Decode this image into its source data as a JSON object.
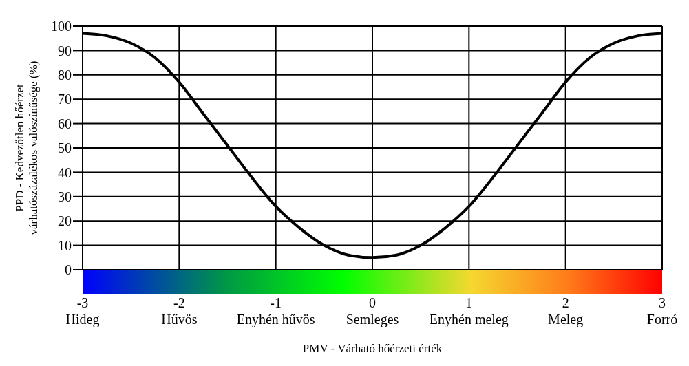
{
  "chart_data": {
    "type": "line",
    "xlabel": "PMV - Várható hőérzeti érték",
    "ylabel": "PPD - Kedvezőtlen hőérzet várhatószázalékos valószínűsége (%)",
    "x": [
      -3,
      -2.75,
      -2.5,
      -2.25,
      -2,
      -1.75,
      -1.5,
      -1.25,
      -1,
      -0.75,
      -0.5,
      -0.25,
      0,
      0.25,
      0.5,
      0.75,
      1,
      1.25,
      1.5,
      1.75,
      2,
      2.25,
      2.5,
      2.75,
      3
    ],
    "series": [
      {
        "color": "#000000",
        "values": [
          97,
          96,
          93,
          87,
          77,
          64,
          51,
          38,
          26,
          17,
          10,
          6,
          5,
          6,
          10,
          17,
          26,
          38,
          51,
          64,
          77,
          87,
          93,
          96,
          97
        ]
      }
    ],
    "xlim": [
      -3,
      3
    ],
    "ylim": [
      0,
      100
    ],
    "xticks": [
      {
        "value": -3,
        "label": "-3\nHideg"
      },
      {
        "value": -2,
        "label": "-2\nHűvös"
      },
      {
        "value": -1,
        "label": "-1\nEnyhén hűvös"
      },
      {
        "value": 0,
        "label": "0\nSemleges"
      },
      {
        "value": 1,
        "label": "1\nEnyhén meleg"
      },
      {
        "value": 2,
        "label": "2\nMeleg"
      },
      {
        "value": 3,
        "label": "3\nForró"
      }
    ],
    "yticks": [
      0,
      10,
      20,
      30,
      40,
      50,
      60,
      70,
      80,
      90,
      100
    ],
    "grid": true,
    "marker": "none",
    "line_style": "solid"
  }
}
